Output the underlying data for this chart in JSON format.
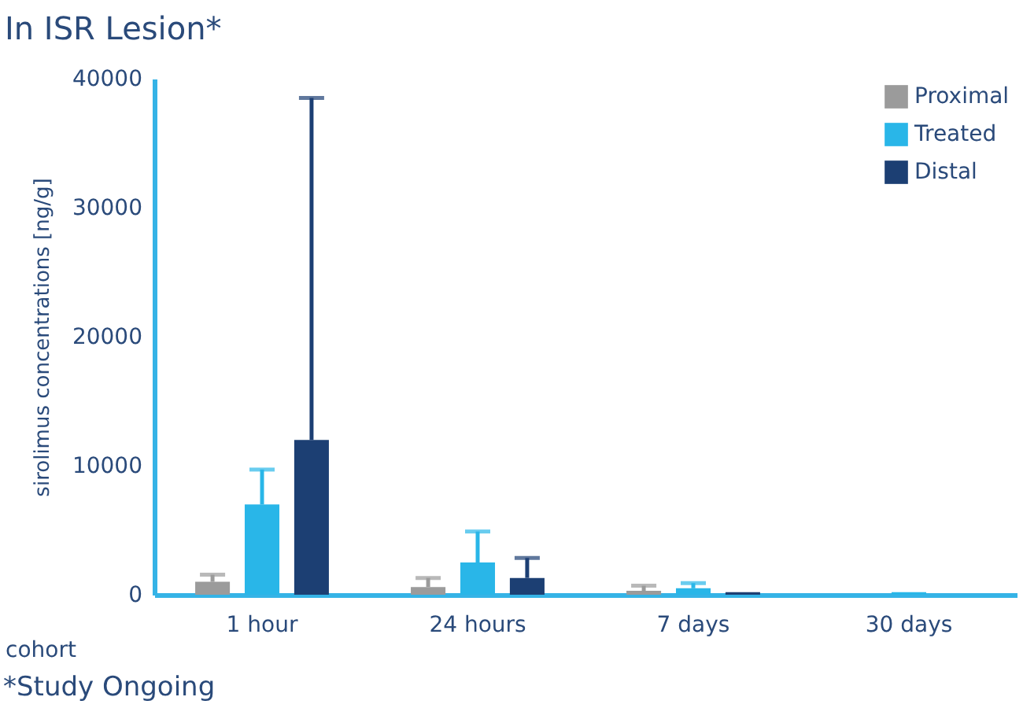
{
  "chart_data": {
    "type": "bar",
    "title": "In ISR Lesion*",
    "xlabel": "cohort",
    "ylabel": "sirolimus concentrations [ng/g]",
    "annotations": [
      "*Study Ongoing"
    ],
    "categories": [
      "1 hour",
      "24 hours",
      "7 days",
      "30 days"
    ],
    "series": [
      {
        "name": "Proximal",
        "color": "#9b9b9b",
        "values": [
          1000,
          600,
          300,
          null
        ],
        "errors": [
          550,
          700,
          400,
          null
        ]
      },
      {
        "name": "Treated",
        "color": "#29b6e8",
        "values": [
          7000,
          2500,
          500,
          200
        ],
        "errors": [
          2700,
          2400,
          400,
          null
        ]
      },
      {
        "name": "Distal",
        "color": "#1c3f73",
        "values": [
          12000,
          1300,
          200,
          null
        ],
        "errors": [
          26500,
          1550,
          null,
          null
        ]
      }
    ],
    "ylim": [
      0,
      40000
    ],
    "yticks": [
      0,
      10000,
      20000,
      30000,
      40000
    ],
    "grid": false,
    "legend": "top right"
  }
}
